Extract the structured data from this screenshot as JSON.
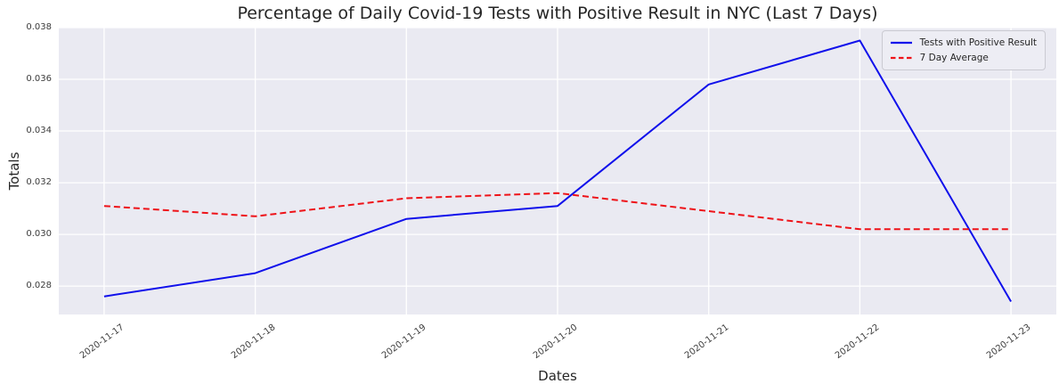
{
  "chart_data": {
    "type": "line",
    "title": "Percentage of Daily Covid-19 Tests with Positive Result in NYC (Last 7 Days)",
    "xlabel": "Dates",
    "ylabel": "Totals",
    "categories": [
      "2020-11-17",
      "2020-11-18",
      "2020-11-19",
      "2020-11-20",
      "2020-11-21",
      "2020-11-22",
      "2020-11-23"
    ],
    "series": [
      {
        "name": "Tests with Positive Result",
        "color": "#1010eb",
        "style": "solid",
        "values": [
          0.0276,
          0.0285,
          0.0306,
          0.0311,
          0.0358,
          0.0375,
          0.0274
        ]
      },
      {
        "name": "7 Day Average",
        "color": "#ee1218",
        "style": "dashed",
        "values": [
          0.0311,
          0.0307,
          0.0314,
          0.0316,
          0.0309,
          0.0302,
          0.0302
        ]
      }
    ],
    "yticks": [
      0.028,
      0.03,
      0.032,
      0.034,
      0.036,
      0.038
    ],
    "ylim": [
      0.0269,
      0.038
    ],
    "xlim": [
      -0.3,
      6.3
    ],
    "grid": true,
    "legend_position": "upper right",
    "plot_bg_color": "#eaeaf2",
    "grid_color": "#ffffff"
  }
}
